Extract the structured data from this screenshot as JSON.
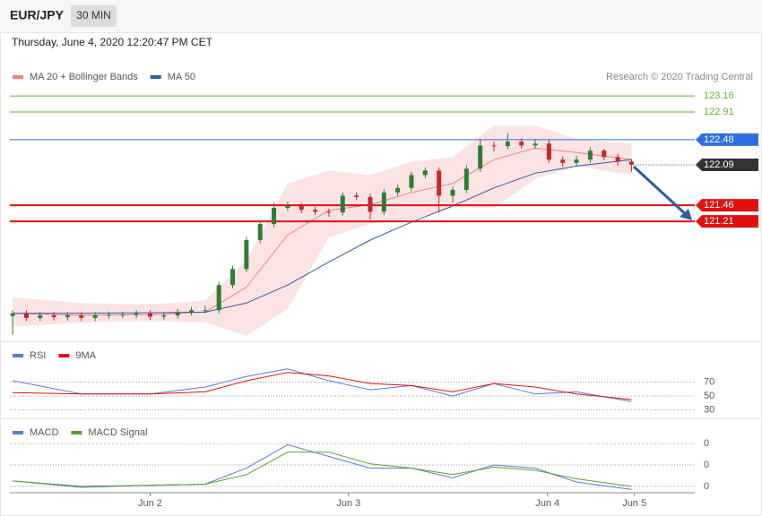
{
  "header": {
    "symbol": "EUR/JPY",
    "interval": "30 MIN",
    "datetime": "Thursday, June 4, 2020 12:20:47 PM CET"
  },
  "chart_data": [
    {
      "type": "candlestick",
      "annotation": "Research © 2020 Trading Central",
      "xlim": [
        -0.2,
        49.6
      ],
      "ylim": [
        119.36,
        124.15
      ],
      "up_color": "#2e7d32",
      "down_color": "#c62828",
      "x": [
        0,
        1,
        2,
        3,
        4,
        5,
        6,
        7,
        8,
        9,
        10,
        11,
        12,
        13,
        14,
        15,
        16,
        17,
        18,
        19,
        20,
        21,
        22,
        23,
        24,
        25,
        26,
        27,
        28,
        29,
        30,
        31,
        32,
        33,
        34,
        35,
        36,
        37,
        38,
        39,
        40,
        41,
        42,
        43,
        44,
        45
      ],
      "open": [
        119.74,
        119.78,
        119.71,
        119.75,
        119.72,
        119.75,
        119.71,
        119.75,
        119.76,
        119.76,
        119.78,
        119.73,
        119.75,
        119.8,
        119.83,
        119.83,
        120.22,
        120.47,
        120.92,
        121.17,
        121.42,
        121.45,
        121.39,
        121.36,
        121.35,
        121.61,
        121.59,
        121.36,
        121.66,
        121.73,
        121.93,
        122.0,
        121.61,
        121.7,
        122.03,
        122.39,
        122.38,
        122.45,
        122.39,
        122.42,
        122.17,
        122.12,
        122.17,
        122.31,
        122.21,
        122.14
      ],
      "high": [
        119.83,
        119.83,
        119.8,
        119.8,
        119.8,
        119.8,
        119.8,
        119.81,
        119.81,
        119.83,
        119.83,
        119.8,
        119.85,
        119.88,
        119.9,
        120.27,
        120.52,
        120.97,
        121.22,
        121.5,
        121.52,
        121.5,
        121.44,
        121.41,
        121.66,
        121.66,
        121.64,
        121.71,
        121.78,
        121.98,
        122.05,
        122.05,
        121.75,
        122.08,
        122.48,
        122.45,
        122.58,
        122.5,
        122.49,
        122.47,
        122.22,
        122.23,
        122.36,
        122.34,
        122.26,
        122.18
      ],
      "low": [
        119.45,
        119.66,
        119.66,
        119.67,
        119.67,
        119.66,
        119.66,
        119.7,
        119.71,
        119.71,
        119.68,
        119.68,
        119.7,
        119.75,
        119.78,
        119.78,
        120.17,
        120.42,
        120.87,
        121.12,
        121.37,
        121.34,
        121.31,
        121.28,
        121.3,
        121.54,
        121.24,
        121.31,
        121.61,
        121.68,
        121.88,
        121.35,
        121.5,
        121.65,
        121.98,
        122.3,
        122.33,
        122.34,
        122.34,
        122.12,
        122.06,
        122.07,
        122.12,
        122.16,
        122.07,
        121.98
      ],
      "close": [
        119.78,
        119.71,
        119.75,
        119.72,
        119.75,
        119.71,
        119.75,
        119.76,
        119.76,
        119.78,
        119.73,
        119.75,
        119.8,
        119.83,
        119.83,
        120.22,
        120.47,
        120.92,
        121.17,
        121.42,
        121.45,
        121.39,
        121.36,
        121.35,
        121.61,
        121.59,
        121.36,
        121.66,
        121.73,
        121.93,
        122.0,
        121.61,
        121.7,
        122.03,
        122.39,
        122.38,
        122.45,
        122.39,
        122.42,
        122.17,
        122.12,
        122.17,
        122.31,
        122.21,
        122.14,
        122.09
      ],
      "series": [
        {
          "name": "MA 20 + Bollinger Bands",
          "color": "#f08080",
          "x": [
            0,
            5,
            10,
            14,
            17,
            20,
            23,
            26,
            29,
            32,
            35,
            38,
            41,
            45
          ],
          "values": [
            119.78,
            119.75,
            119.76,
            119.8,
            120.19,
            121.0,
            121.38,
            121.47,
            121.66,
            121.8,
            122.17,
            122.35,
            122.28,
            122.17
          ],
          "upper": [
            120.03,
            119.94,
            119.92,
            119.98,
            120.61,
            121.8,
            122.0,
            121.93,
            122.14,
            122.21,
            122.7,
            122.7,
            122.49,
            122.42
          ],
          "lower": [
            119.57,
            119.64,
            119.66,
            119.64,
            119.43,
            119.85,
            120.96,
            121.17,
            121.24,
            121.42,
            121.42,
            121.87,
            122.07,
            121.93
          ]
        },
        {
          "name": "MA 50",
          "color": "#2f5aa8",
          "x": [
            0,
            5,
            10,
            14,
            17,
            20,
            23,
            26,
            29,
            32,
            35,
            38,
            41,
            45
          ],
          "values": [
            119.78,
            119.78,
            119.79,
            119.8,
            119.94,
            120.22,
            120.58,
            120.92,
            121.2,
            121.45,
            121.73,
            121.96,
            122.07,
            122.17
          ]
        }
      ],
      "levels": [
        {
          "value": 123.16,
          "color": "#66b032",
          "box": false
        },
        {
          "value": 122.91,
          "color": "#66b032",
          "box": false
        },
        {
          "value": 122.48,
          "color": "#2f6fe0",
          "box": true
        },
        {
          "value": 122.09,
          "color": "#333333",
          "box": true,
          "dash": true
        },
        {
          "value": 121.46,
          "color": "#e01010",
          "box": true
        },
        {
          "value": 121.21,
          "color": "#e01010",
          "box": true
        }
      ]
    },
    {
      "type": "line",
      "xlim": [
        -0.2,
        49.6
      ],
      "ylim": [
        18,
        126
      ],
      "yticks": [
        30,
        50,
        70
      ],
      "x": [
        0,
        5,
        10,
        14,
        17,
        20,
        23,
        26,
        29,
        32,
        35,
        38,
        41,
        45
      ],
      "series": [
        {
          "name": "RSI",
          "color": "#5b7bd5",
          "values": [
            72,
            53,
            53,
            63,
            78,
            89,
            72,
            59,
            65,
            50,
            68,
            53,
            56,
            42
          ]
        },
        {
          "name": "9MA",
          "color": "#e01010",
          "values": [
            55,
            53,
            53,
            56,
            72,
            84,
            79,
            68,
            65,
            56,
            68,
            63,
            53,
            45
          ]
        }
      ]
    },
    {
      "type": "line",
      "xlim": [
        -0.2,
        49.6
      ],
      "ylim": [
        -0.26,
        0.42
      ],
      "yticks": [
        {
          "value": -0.2,
          "label": "0"
        },
        {
          "value": 0,
          "label": "0"
        },
        {
          "value": 0.2,
          "label": "0"
        }
      ],
      "xticks": [
        {
          "value": 10,
          "label": "Jun 2"
        },
        {
          "value": 24.43,
          "label": "Jun 3"
        },
        {
          "value": 38.89,
          "label": "Jun 4"
        },
        {
          "value": 45.21,
          "label": "Jun 5"
        }
      ],
      "x": [
        0,
        5,
        10,
        14,
        17,
        20,
        23,
        26,
        29,
        32,
        35,
        38,
        41,
        45
      ],
      "series": [
        {
          "name": "MACD",
          "color": "#5b7bd5",
          "values": [
            -0.15,
            -0.21,
            -0.19,
            -0.18,
            -0.03,
            0.19,
            0.08,
            -0.03,
            -0.03,
            -0.12,
            0,
            -0.03,
            -0.16,
            -0.23
          ]
        },
        {
          "name": "MACD Signal",
          "color": "#5aa02c",
          "values": [
            -0.15,
            -0.2,
            -0.19,
            -0.18,
            -0.09,
            0.12,
            0.12,
            0.01,
            -0.03,
            -0.09,
            -0.02,
            -0.05,
            -0.13,
            -0.2
          ]
        }
      ]
    }
  ]
}
